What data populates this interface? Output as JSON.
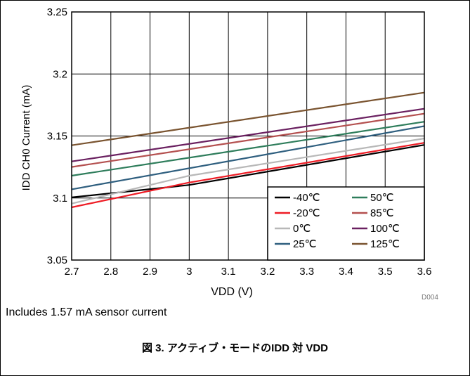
{
  "chart_data": {
    "type": "line",
    "xlabel": "VDD (V)",
    "ylabel": "IDD CH0 Current (mA)",
    "xlim": [
      2.7,
      3.6
    ],
    "ylim": [
      3.05,
      3.25
    ],
    "xticks": [
      "2.7",
      "2.8",
      "2.9",
      "3",
      "3.1",
      "3.2",
      "3.3",
      "3.4",
      "3.5",
      "3.6"
    ],
    "yticks": [
      "3.05",
      "3.1",
      "3.15",
      "3.2",
      "3.25"
    ],
    "grid": true,
    "legend_position": "bottom-right",
    "series": [
      {
        "name": "-40℃",
        "color": "#000000",
        "x": [
          2.7,
          3.0,
          3.6
        ],
        "y": [
          3.1005,
          3.1105,
          3.1428
        ]
      },
      {
        "name": "-20℃",
        "color": "#ee1c25",
        "x": [
          2.7,
          3.0,
          3.6
        ],
        "y": [
          3.0925,
          3.1125,
          3.1445
        ]
      },
      {
        "name": "0℃",
        "color": "#b8b8b8",
        "x": [
          2.7,
          3.0,
          3.6
        ],
        "y": [
          3.0955,
          3.118,
          3.148
        ]
      },
      {
        "name": "25℃",
        "color": "#2f5f7f",
        "x": [
          2.7,
          3.6
        ],
        "y": [
          3.107,
          3.158
        ]
      },
      {
        "name": "50℃",
        "color": "#2e7d5b",
        "x": [
          2.7,
          3.6
        ],
        "y": [
          3.118,
          3.1615
        ]
      },
      {
        "name": "85℃",
        "color": "#b4504f",
        "x": [
          2.7,
          3.6
        ],
        "y": [
          3.125,
          3.168
        ]
      },
      {
        "name": "100℃",
        "color": "#6a2060",
        "x": [
          2.7,
          3.6
        ],
        "y": [
          3.1295,
          3.172
        ]
      },
      {
        "name": "125℃",
        "color": "#7a5430",
        "x": [
          2.7,
          3.6
        ],
        "y": [
          3.1425,
          3.185
        ]
      }
    ]
  },
  "doc_id": "D004",
  "note": "Includes 1.57 mA sensor current",
  "caption": "図 3. アクティブ・モードのIDD 対 VDD"
}
